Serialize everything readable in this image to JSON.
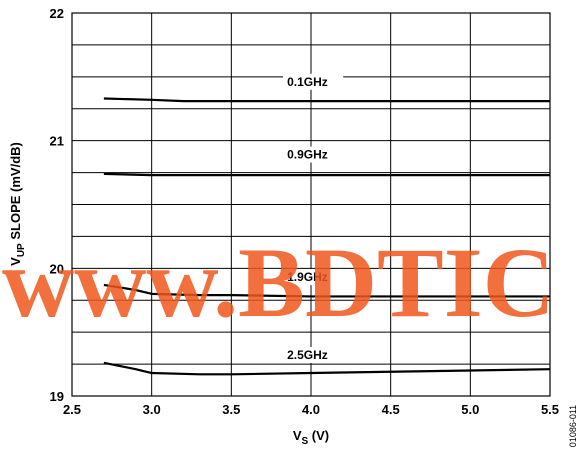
{
  "chart_data": {
    "type": "line",
    "xlabel": {
      "main": "V",
      "sub": "S",
      "unit": " (V)"
    },
    "ylabel": {
      "main": "V",
      "sub": "UP",
      "rest": " SLOPE (mV/dB)"
    },
    "xlim": [
      2.5,
      5.5
    ],
    "ylim": [
      19,
      22
    ],
    "xticks": [
      "2.5",
      "3.0",
      "3.5",
      "4.0",
      "4.5",
      "5.0",
      "5.5"
    ],
    "yticks": [
      "19",
      "20",
      "21",
      "22"
    ],
    "grid": true,
    "series": [
      {
        "name": "0.1GHz",
        "x": [
          2.7,
          3.0,
          3.2,
          3.5,
          4.0,
          4.5,
          5.0,
          5.5
        ],
        "y": [
          21.33,
          21.32,
          21.31,
          21.31,
          21.31,
          21.31,
          21.31,
          21.31
        ]
      },
      {
        "name": "0.9GHz",
        "x": [
          2.7,
          3.0,
          3.3,
          3.5,
          4.0,
          4.5,
          5.0,
          5.5
        ],
        "y": [
          20.74,
          20.73,
          20.73,
          20.73,
          20.73,
          20.73,
          20.73,
          20.73
        ]
      },
      {
        "name": "1.9GHz",
        "x": [
          2.7,
          2.9,
          3.0,
          3.3,
          3.5,
          4.0,
          4.5,
          5.0,
          5.5
        ],
        "y": [
          19.87,
          19.83,
          19.8,
          19.79,
          19.79,
          19.78,
          19.78,
          19.78,
          19.78
        ]
      },
      {
        "name": "2.5GHz",
        "x": [
          2.7,
          2.9,
          3.0,
          3.3,
          3.5,
          4.0,
          4.5,
          5.0,
          5.5
        ],
        "y": [
          19.26,
          19.21,
          19.18,
          19.17,
          19.17,
          19.18,
          19.19,
          19.2,
          19.21
        ]
      }
    ]
  },
  "figure_id": "01086-011",
  "watermark": "www.BDTIC",
  "colors": {
    "line": "#000000",
    "grid": "#000000",
    "watermark": "#f0571b"
  }
}
